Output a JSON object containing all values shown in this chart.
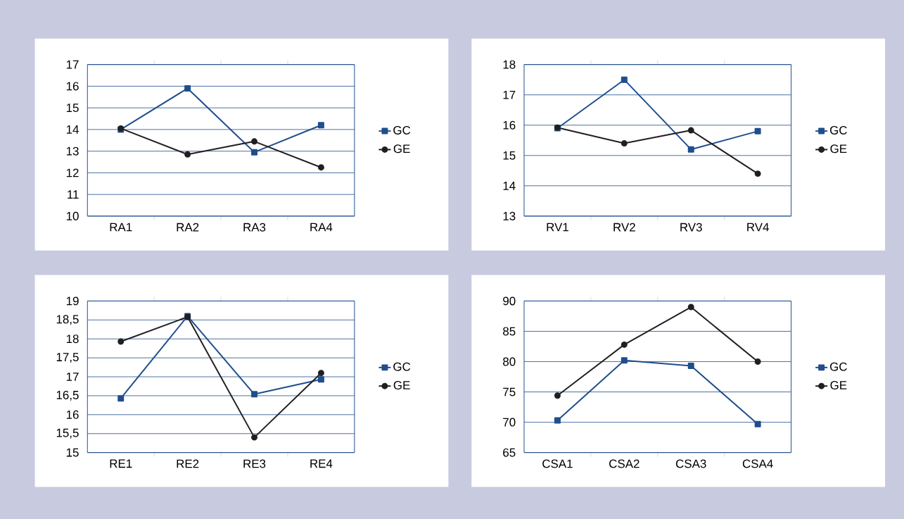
{
  "chart_data": [
    {
      "type": "line",
      "categories": [
        "RA1",
        "RA2",
        "RA3",
        "RA4"
      ],
      "ylim": [
        10,
        17
      ],
      "yticks": [
        10,
        11,
        12,
        13,
        14,
        15,
        16,
        17
      ],
      "grid": "y",
      "legend": "right",
      "series": [
        {
          "name": "GC",
          "color": "#1f4e8c",
          "marker": "square",
          "values": [
            14.0,
            15.9,
            12.95,
            14.2
          ]
        },
        {
          "name": "GE",
          "color": "#231f20",
          "marker": "circle",
          "values": [
            14.05,
            12.85,
            13.45,
            12.25
          ]
        }
      ]
    },
    {
      "type": "line",
      "categories": [
        "RV1",
        "RV2",
        "RV3",
        "RV4"
      ],
      "ylim": [
        13,
        18
      ],
      "yticks": [
        13,
        14,
        15,
        16,
        17,
        18
      ],
      "grid": "y",
      "legend": "right",
      "series": [
        {
          "name": "GC",
          "color": "#1f4e8c",
          "marker": "square",
          "values": [
            15.9,
            17.5,
            15.2,
            15.8
          ]
        },
        {
          "name": "GE",
          "color": "#231f20",
          "marker": "circle",
          "values": [
            15.92,
            15.4,
            15.83,
            14.4
          ]
        }
      ]
    },
    {
      "type": "line",
      "categories": [
        "RE1",
        "RE2",
        "RE3",
        "RE4"
      ],
      "ylim": [
        15,
        19
      ],
      "yticks": [
        15,
        {
          "value": 15.5,
          "label": "15,5"
        },
        16,
        {
          "value": 16.5,
          "label": "16,5"
        },
        17,
        {
          "value": 17.5,
          "label": "17,5"
        },
        18,
        {
          "value": 18.5,
          "label": "18,5"
        },
        19
      ],
      "grid": "y",
      "legend": "right",
      "series": [
        {
          "name": "GC",
          "color": "#1f4e8c",
          "marker": "square",
          "values": [
            16.43,
            18.6,
            16.54,
            16.93
          ]
        },
        {
          "name": "GE",
          "color": "#231f20",
          "marker": "circle",
          "values": [
            17.93,
            18.58,
            15.4,
            17.1
          ]
        }
      ]
    },
    {
      "type": "line",
      "categories": [
        "CSA1",
        "CSA2",
        "CSA3",
        "CSA4"
      ],
      "ylim": [
        65,
        90
      ],
      "yticks": [
        65,
        70,
        75,
        80,
        85,
        90
      ],
      "grid": "y",
      "legend": "right",
      "series": [
        {
          "name": "GC",
          "color": "#1f4e8c",
          "marker": "square",
          "values": [
            70.3,
            80.2,
            79.3,
            69.7
          ]
        },
        {
          "name": "GE",
          "color": "#231f20",
          "marker": "circle",
          "values": [
            74.4,
            82.8,
            89.0,
            80.0
          ]
        }
      ]
    }
  ]
}
